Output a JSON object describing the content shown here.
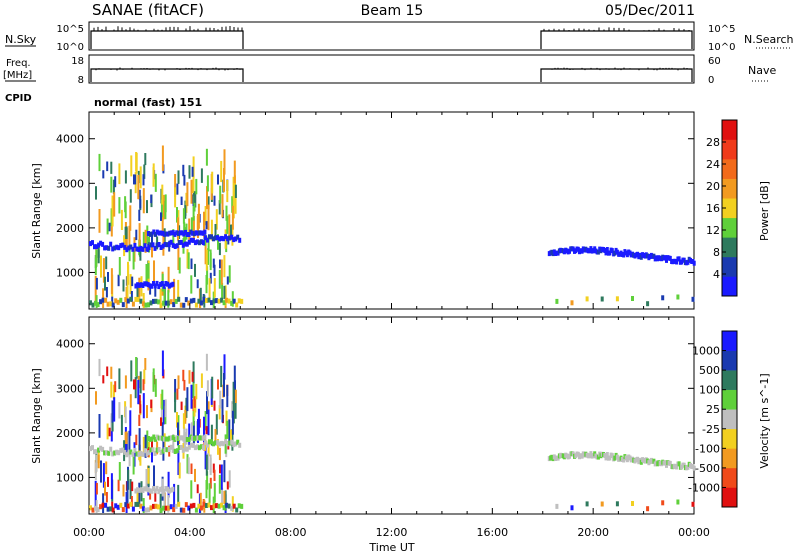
{
  "header": {
    "station": "SANAE (fitACF)",
    "beam": "Beam 15",
    "date": "05/Dec/2011"
  },
  "noise_panel": {
    "left_label": "N.Sky",
    "left_ticks": [
      "10^5",
      "10^0"
    ],
    "right_label": "N.Search",
    "right_ticks": [
      "10^5",
      "10^0"
    ]
  },
  "freq_panel": {
    "left_label_top": "Freq.",
    "left_label_bottom": "[MHz]",
    "left_ticks": [
      "18",
      "8"
    ],
    "right_label": "Nave",
    "right_ticks": [
      "60",
      "0"
    ]
  },
  "cpid": {
    "label": "CPID",
    "value": "normal (fast) 151"
  },
  "x_axis": {
    "label": "Time UT",
    "ticks": [
      "00:00",
      "04:00",
      "08:00",
      "12:00",
      "16:00",
      "20:00",
      "00:00"
    ]
  },
  "colors": {
    "power": [
      "#1a1aff",
      "#1a3ab0",
      "#2e7a5e",
      "#5fd03a",
      "#f2d020",
      "#f29a20",
      "#f26a1a",
      "#f03a1a",
      "#e01010"
    ],
    "velocity": [
      "#e01010",
      "#f04a1a",
      "#f29a20",
      "#f2d020",
      "#bfbfbf",
      "#5fd03a",
      "#2e7a5e",
      "#1a3ab0",
      "#1a1aff"
    ]
  },
  "chart_data": [
    {
      "type": "heatmap",
      "xlabel": "Time UT",
      "ylabel": "Slant Range [km]",
      "x_ticks": [
        "00:00",
        "04:00",
        "08:00",
        "12:00",
        "16:00",
        "20:00",
        "00:00"
      ],
      "y_ticks": [
        "1000",
        "2000",
        "3000",
        "4000"
      ],
      "xlim_hours": [
        0,
        24
      ],
      "ylim_km": [
        180,
        4600
      ],
      "colorbar": {
        "label": "Power [dB]",
        "ticks": [
          "4",
          "8",
          "12",
          "16",
          "20",
          "24",
          "28"
        ],
        "range": [
          0,
          32
        ]
      }
    },
    {
      "type": "heatmap",
      "xlabel": "Time UT",
      "ylabel": "Slant Range [km]",
      "x_ticks": [
        "00:00",
        "04:00",
        "08:00",
        "12:00",
        "16:00",
        "20:00",
        "00:00"
      ],
      "y_ticks": [
        "1000",
        "2000",
        "3000",
        "4000"
      ],
      "xlim_hours": [
        0,
        24
      ],
      "ylim_km": [
        180,
        4600
      ],
      "colorbar": {
        "label": "Velocity [m s^-1]",
        "ticks": [
          "1000",
          "500",
          "100",
          "25",
          "-25",
          "-100",
          "-500",
          "-1000"
        ]
      }
    }
  ]
}
